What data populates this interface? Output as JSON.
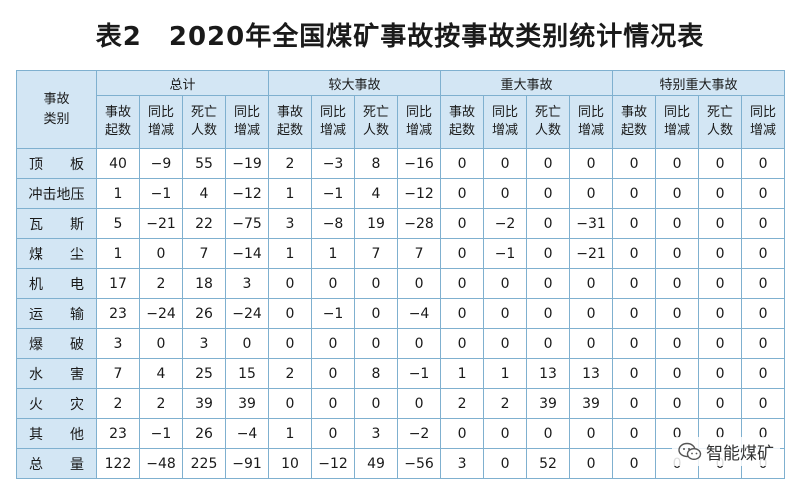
{
  "title": "表2　2020年全国煤矿事故按事故类别统计情况表",
  "header": {
    "category": "事故类别",
    "groups": [
      "总计",
      "较大事故",
      "重大事故",
      "特别重大事故"
    ],
    "subcols": [
      "事故起数",
      "同比增减",
      "死亡人数",
      "同比增减"
    ]
  },
  "rows": [
    {
      "label": "顶板",
      "values": [
        "40",
        "−9",
        "55",
        "−19",
        "2",
        "−3",
        "8",
        "−16",
        "0",
        "0",
        "0",
        "0",
        "0",
        "0",
        "0",
        "0"
      ]
    },
    {
      "label": "冲击地压",
      "values": [
        "1",
        "−1",
        "4",
        "−12",
        "1",
        "−1",
        "4",
        "−12",
        "0",
        "0",
        "0",
        "0",
        "0",
        "0",
        "0",
        "0"
      ]
    },
    {
      "label": "瓦斯",
      "values": [
        "5",
        "−21",
        "22",
        "−75",
        "3",
        "−8",
        "19",
        "−28",
        "0",
        "−2",
        "0",
        "−31",
        "0",
        "0",
        "0",
        "0"
      ]
    },
    {
      "label": "煤尘",
      "values": [
        "1",
        "0",
        "7",
        "−14",
        "1",
        "1",
        "7",
        "7",
        "0",
        "−1",
        "0",
        "−21",
        "0",
        "0",
        "0",
        "0"
      ]
    },
    {
      "label": "机电",
      "values": [
        "17",
        "2",
        "18",
        "3",
        "0",
        "0",
        "0",
        "0",
        "0",
        "0",
        "0",
        "0",
        "0",
        "0",
        "0",
        "0"
      ]
    },
    {
      "label": "运输",
      "values": [
        "23",
        "−24",
        "26",
        "−24",
        "0",
        "−1",
        "0",
        "−4",
        "0",
        "0",
        "0",
        "0",
        "0",
        "0",
        "0",
        "0"
      ]
    },
    {
      "label": "爆破",
      "values": [
        "3",
        "0",
        "3",
        "0",
        "0",
        "0",
        "0",
        "0",
        "0",
        "0",
        "0",
        "0",
        "0",
        "0",
        "0",
        "0"
      ]
    },
    {
      "label": "水害",
      "values": [
        "7",
        "4",
        "25",
        "15",
        "2",
        "0",
        "8",
        "−1",
        "1",
        "1",
        "13",
        "13",
        "0",
        "0",
        "0",
        "0"
      ]
    },
    {
      "label": "火灾",
      "values": [
        "2",
        "2",
        "39",
        "39",
        "0",
        "0",
        "0",
        "0",
        "2",
        "2",
        "39",
        "39",
        "0",
        "0",
        "0",
        "0"
      ]
    },
    {
      "label": "其他",
      "values": [
        "23",
        "−1",
        "26",
        "−4",
        "1",
        "0",
        "3",
        "−2",
        "0",
        "0",
        "0",
        "0",
        "0",
        "0",
        "0",
        "0"
      ]
    },
    {
      "label": "总量",
      "values": [
        "122",
        "−48",
        "225",
        "−91",
        "10",
        "−12",
        "49",
        "−56",
        "3",
        "0",
        "52",
        "0",
        "0",
        "0",
        "0",
        "0"
      ]
    }
  ],
  "watermark": {
    "text": "智能煤矿",
    "icon": "wechat-icon"
  }
}
